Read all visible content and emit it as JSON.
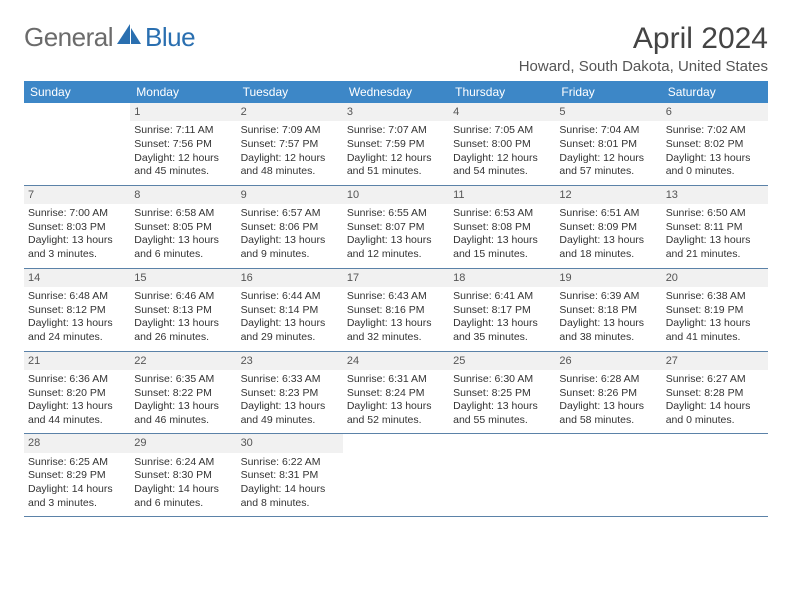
{
  "logo": {
    "text1": "General",
    "text2": "Blue"
  },
  "title": "April 2024",
  "location": "Howard, South Dakota, United States",
  "colors": {
    "header_bg": "#3d87c7",
    "header_text": "#ffffff",
    "row_border": "#5b82a8",
    "daynum_bg": "#f1f1f1",
    "text": "#333333",
    "logo_gray": "#6b6b6b",
    "logo_blue": "#2a6fb0"
  },
  "day_names": [
    "Sunday",
    "Monday",
    "Tuesday",
    "Wednesday",
    "Thursday",
    "Friday",
    "Saturday"
  ],
  "weeks": [
    [
      {
        "n": "",
        "lines": []
      },
      {
        "n": "1",
        "lines": [
          "Sunrise: 7:11 AM",
          "Sunset: 7:56 PM",
          "Daylight: 12 hours and 45 minutes."
        ]
      },
      {
        "n": "2",
        "lines": [
          "Sunrise: 7:09 AM",
          "Sunset: 7:57 PM",
          "Daylight: 12 hours and 48 minutes."
        ]
      },
      {
        "n": "3",
        "lines": [
          "Sunrise: 7:07 AM",
          "Sunset: 7:59 PM",
          "Daylight: 12 hours and 51 minutes."
        ]
      },
      {
        "n": "4",
        "lines": [
          "Sunrise: 7:05 AM",
          "Sunset: 8:00 PM",
          "Daylight: 12 hours and 54 minutes."
        ]
      },
      {
        "n": "5",
        "lines": [
          "Sunrise: 7:04 AM",
          "Sunset: 8:01 PM",
          "Daylight: 12 hours and 57 minutes."
        ]
      },
      {
        "n": "6",
        "lines": [
          "Sunrise: 7:02 AM",
          "Sunset: 8:02 PM",
          "Daylight: 13 hours and 0 minutes."
        ]
      }
    ],
    [
      {
        "n": "7",
        "lines": [
          "Sunrise: 7:00 AM",
          "Sunset: 8:03 PM",
          "Daylight: 13 hours and 3 minutes."
        ]
      },
      {
        "n": "8",
        "lines": [
          "Sunrise: 6:58 AM",
          "Sunset: 8:05 PM",
          "Daylight: 13 hours and 6 minutes."
        ]
      },
      {
        "n": "9",
        "lines": [
          "Sunrise: 6:57 AM",
          "Sunset: 8:06 PM",
          "Daylight: 13 hours and 9 minutes."
        ]
      },
      {
        "n": "10",
        "lines": [
          "Sunrise: 6:55 AM",
          "Sunset: 8:07 PM",
          "Daylight: 13 hours and 12 minutes."
        ]
      },
      {
        "n": "11",
        "lines": [
          "Sunrise: 6:53 AM",
          "Sunset: 8:08 PM",
          "Daylight: 13 hours and 15 minutes."
        ]
      },
      {
        "n": "12",
        "lines": [
          "Sunrise: 6:51 AM",
          "Sunset: 8:09 PM",
          "Daylight: 13 hours and 18 minutes."
        ]
      },
      {
        "n": "13",
        "lines": [
          "Sunrise: 6:50 AM",
          "Sunset: 8:11 PM",
          "Daylight: 13 hours and 21 minutes."
        ]
      }
    ],
    [
      {
        "n": "14",
        "lines": [
          "Sunrise: 6:48 AM",
          "Sunset: 8:12 PM",
          "Daylight: 13 hours and 24 minutes."
        ]
      },
      {
        "n": "15",
        "lines": [
          "Sunrise: 6:46 AM",
          "Sunset: 8:13 PM",
          "Daylight: 13 hours and 26 minutes."
        ]
      },
      {
        "n": "16",
        "lines": [
          "Sunrise: 6:44 AM",
          "Sunset: 8:14 PM",
          "Daylight: 13 hours and 29 minutes."
        ]
      },
      {
        "n": "17",
        "lines": [
          "Sunrise: 6:43 AM",
          "Sunset: 8:16 PM",
          "Daylight: 13 hours and 32 minutes."
        ]
      },
      {
        "n": "18",
        "lines": [
          "Sunrise: 6:41 AM",
          "Sunset: 8:17 PM",
          "Daylight: 13 hours and 35 minutes."
        ]
      },
      {
        "n": "19",
        "lines": [
          "Sunrise: 6:39 AM",
          "Sunset: 8:18 PM",
          "Daylight: 13 hours and 38 minutes."
        ]
      },
      {
        "n": "20",
        "lines": [
          "Sunrise: 6:38 AM",
          "Sunset: 8:19 PM",
          "Daylight: 13 hours and 41 minutes."
        ]
      }
    ],
    [
      {
        "n": "21",
        "lines": [
          "Sunrise: 6:36 AM",
          "Sunset: 8:20 PM",
          "Daylight: 13 hours and 44 minutes."
        ]
      },
      {
        "n": "22",
        "lines": [
          "Sunrise: 6:35 AM",
          "Sunset: 8:22 PM",
          "Daylight: 13 hours and 46 minutes."
        ]
      },
      {
        "n": "23",
        "lines": [
          "Sunrise: 6:33 AM",
          "Sunset: 8:23 PM",
          "Daylight: 13 hours and 49 minutes."
        ]
      },
      {
        "n": "24",
        "lines": [
          "Sunrise: 6:31 AM",
          "Sunset: 8:24 PM",
          "Daylight: 13 hours and 52 minutes."
        ]
      },
      {
        "n": "25",
        "lines": [
          "Sunrise: 6:30 AM",
          "Sunset: 8:25 PM",
          "Daylight: 13 hours and 55 minutes."
        ]
      },
      {
        "n": "26",
        "lines": [
          "Sunrise: 6:28 AM",
          "Sunset: 8:26 PM",
          "Daylight: 13 hours and 58 minutes."
        ]
      },
      {
        "n": "27",
        "lines": [
          "Sunrise: 6:27 AM",
          "Sunset: 8:28 PM",
          "Daylight: 14 hours and 0 minutes."
        ]
      }
    ],
    [
      {
        "n": "28",
        "lines": [
          "Sunrise: 6:25 AM",
          "Sunset: 8:29 PM",
          "Daylight: 14 hours and 3 minutes."
        ]
      },
      {
        "n": "29",
        "lines": [
          "Sunrise: 6:24 AM",
          "Sunset: 8:30 PM",
          "Daylight: 14 hours and 6 minutes."
        ]
      },
      {
        "n": "30",
        "lines": [
          "Sunrise: 6:22 AM",
          "Sunset: 8:31 PM",
          "Daylight: 14 hours and 8 minutes."
        ]
      },
      {
        "n": "",
        "lines": []
      },
      {
        "n": "",
        "lines": []
      },
      {
        "n": "",
        "lines": []
      },
      {
        "n": "",
        "lines": []
      }
    ]
  ]
}
